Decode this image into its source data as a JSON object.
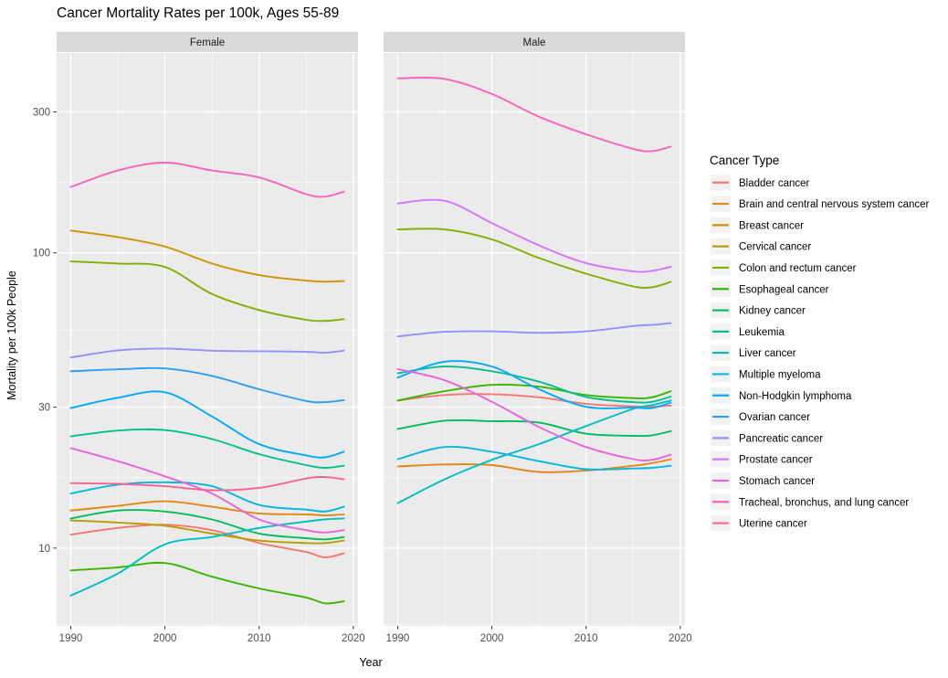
{
  "page": {
    "title": "Cancer Mortality Rates per 100k, Ages 55-89"
  },
  "theme": {
    "panel_bg": "#EBEBEB",
    "strip_bg": "#D9D9D9",
    "strip_text": "#1A1A1A",
    "grid_major": "#FFFFFF",
    "grid_minor": "#FFFFFF",
    "tick_mark": "#333333",
    "tick_text": "#4D4D4D",
    "axis_text": "#000000",
    "legend_key_bg": "#F2F2F2"
  },
  "chart_data": {
    "type": "line",
    "title": "Cancer Mortality Rates per 100k, Ages 55-89",
    "xlabel": "Year",
    "ylabel": "Mortality per 100k People",
    "legend_title": "Cancer Type",
    "legend_position": "right",
    "grid": true,
    "y_scale": "log10",
    "facet_labels": [
      "Female",
      "Male"
    ],
    "x": [
      1990,
      1995,
      2000,
      2005,
      2010,
      2015,
      2017,
      2019
    ],
    "x_ticks": [
      1990,
      2000,
      2010,
      2020
    ],
    "x_minor_gridlines": [
      1995,
      2005,
      2015
    ],
    "y_ticks": [
      10,
      30,
      100,
      300
    ],
    "y_minor_gridlines": [
      5.5,
      17.3,
      54.8,
      173.2
    ],
    "xlim": [
      1988.5,
      2020.5
    ],
    "ylim": [
      5.45,
      475
    ],
    "series": [
      {
        "name": "Bladder cancer",
        "color": "#F8766D",
        "values": {
          "Female": [
            11.1,
            11.7,
            12.0,
            11.5,
            10.4,
            9.7,
            9.3,
            9.6
          ],
          "Male": [
            31.6,
            33.0,
            33.2,
            32.4,
            30.8,
            30.2,
            30.1,
            30.4
          ]
        }
      },
      {
        "name": "Brain and central nervous system cancer",
        "color": "#E68613",
        "values": {
          "Female": [
            13.4,
            13.9,
            14.4,
            13.8,
            13.1,
            13.0,
            12.9,
            13.0
          ],
          "Male": [
            18.9,
            19.2,
            19.1,
            18.1,
            18.3,
            19.0,
            19.4,
            20.0
          ]
        }
      },
      {
        "name": "Breast cancer",
        "color": "#D09400",
        "values": {
          "Female": [
            119,
            113,
            105,
            92,
            84,
            80.5,
            79.8,
            80.2
          ],
          "Male": null
        }
      },
      {
        "name": "Cervical cancer",
        "color": "#B3A000",
        "values": {
          "Female": [
            12.4,
            12.2,
            11.9,
            11.2,
            10.6,
            10.4,
            10.4,
            10.6
          ],
          "Male": null
        }
      },
      {
        "name": "Colon and rectum cancer",
        "color": "#85AD00",
        "values": {
          "Female": [
            93.5,
            92,
            89.5,
            72.5,
            64,
            59.3,
            58.8,
            59.6
          ],
          "Male": [
            120,
            120,
            111,
            96,
            85,
            77,
            76.5,
            79.7
          ]
        }
      },
      {
        "name": "Esophageal cancer",
        "color": "#39B600",
        "values": {
          "Female": [
            8.4,
            8.6,
            8.9,
            8.0,
            7.3,
            6.8,
            6.5,
            6.6
          ],
          "Male": [
            31.6,
            34.0,
            35.7,
            35.2,
            33.0,
            32.2,
            32.4,
            34.0
          ]
        }
      },
      {
        "name": "Kidney cancer",
        "color": "#00BD5C",
        "values": {
          "Female": [
            12.6,
            13.4,
            13.3,
            12.5,
            11.2,
            10.8,
            10.7,
            10.9
          ],
          "Male": [
            25.3,
            27.0,
            26.9,
            26.6,
            24.4,
            24.0,
            24.1,
            24.9
          ]
        }
      },
      {
        "name": "Leukemia",
        "color": "#00C08D",
        "values": {
          "Female": [
            23.9,
            25.0,
            25.1,
            23.4,
            20.8,
            19.1,
            18.7,
            19.0
          ],
          "Male": [
            39.1,
            41.2,
            39.7,
            36.6,
            32.5,
            31.2,
            31.3,
            32.6
          ]
        }
      },
      {
        "name": "Liver cancer",
        "color": "#00BFC4",
        "values": {
          "Female": [
            6.9,
            8.2,
            10.3,
            10.9,
            11.7,
            12.3,
            12.5,
            12.6
          ],
          "Male": [
            14.2,
            17.1,
            19.9,
            22.5,
            25.9,
            29.6,
            30.5,
            31.6
          ]
        }
      },
      {
        "name": "Multiple myeloma",
        "color": "#00B8E5",
        "values": {
          "Female": [
            15.3,
            16.4,
            16.7,
            16.2,
            14.0,
            13.5,
            13.3,
            13.8
          ],
          "Male": [
            20.0,
            22.0,
            21.2,
            19.7,
            18.5,
            18.6,
            18.7,
            19.0
          ]
        }
      },
      {
        "name": "Non-Hodgkin lymphoma",
        "color": "#00A9FF",
        "values": {
          "Female": [
            29.8,
            32.3,
            33.7,
            27.9,
            22.5,
            20.6,
            20.3,
            21.2
          ],
          "Male": [
            37.8,
            42.8,
            41.2,
            34.5,
            30.1,
            29.9,
            29.8,
            31.1
          ]
        }
      },
      {
        "name": "Ovarian cancer",
        "color": "#2E9EF3",
        "values": {
          "Female": [
            39.7,
            40.3,
            40.6,
            38.3,
            34.5,
            31.5,
            31.2,
            31.7
          ],
          "Male": null
        }
      },
      {
        "name": "Pancreatic cancer",
        "color": "#9590FF",
        "values": {
          "Female": [
            44.2,
            46.7,
            47.4,
            46.6,
            46.4,
            46.2,
            45.9,
            46.6
          ],
          "Male": [
            52.1,
            54.0,
            54.2,
            53.6,
            54.2,
            56.5,
            57.0,
            57.8
          ]
        }
      },
      {
        "name": "Prostate cancer",
        "color": "#D376FF",
        "values": {
          "Female": null,
          "Male": [
            147,
            150,
            126,
            106,
            92.3,
            86.6,
            86.9,
            89.7
          ]
        }
      },
      {
        "name": "Stomach cancer",
        "color": "#EA62DC",
        "values": {
          "Female": [
            21.8,
            19.7,
            17.5,
            15.3,
            12.5,
            11.5,
            11.3,
            11.5
          ],
          "Male": [
            40.4,
            37.0,
            31.3,
            25.7,
            22.0,
            20.0,
            19.9,
            20.7
          ]
        }
      },
      {
        "name": "Tracheal, bronchus, and lung cancer",
        "color": "#FB61BE",
        "values": {
          "Female": [
            167,
            190,
            202,
            190,
            180,
            158,
            155,
            161
          ],
          "Male": [
            390,
            388,
            345,
            289,
            252,
            225,
            221,
            229
          ]
        }
      },
      {
        "name": "Uterine cancer",
        "color": "#FC6294",
        "values": {
          "Female": [
            16.6,
            16.5,
            16.2,
            15.7,
            16.0,
            17.2,
            17.4,
            17.1
          ],
          "Male": null
        }
      }
    ]
  }
}
